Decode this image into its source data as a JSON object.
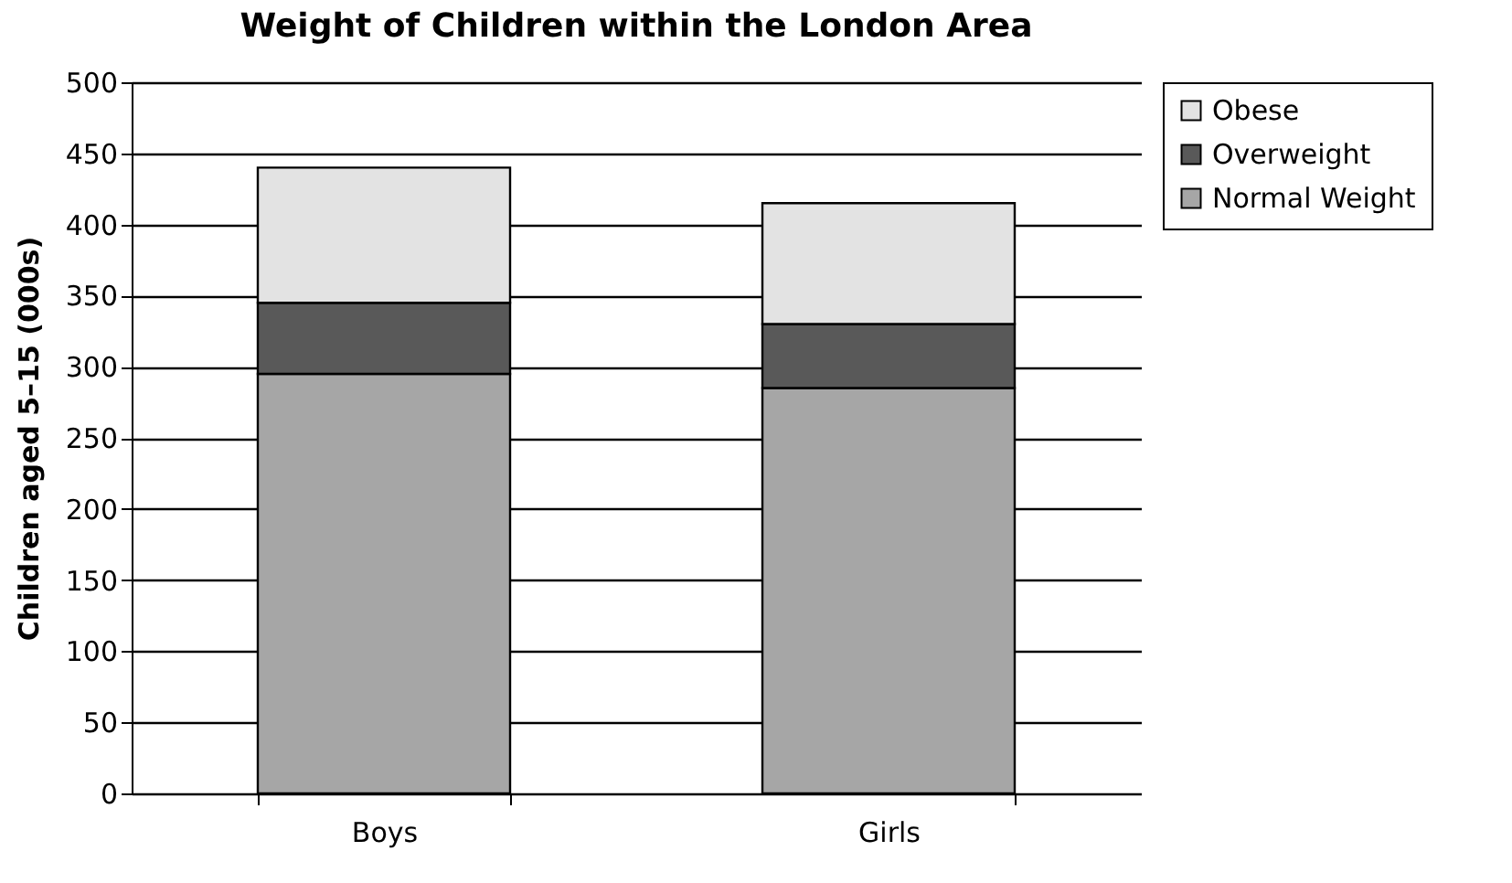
{
  "chart_data": {
    "type": "bar",
    "title": "Weight of Children within the London Area",
    "ylabel": "Children aged 5–15 (000s)",
    "categories": [
      "Boys",
      "Girls"
    ],
    "stacked": true,
    "series": [
      {
        "name": "Normal Weight",
        "color": "#a6a6a6",
        "values": [
          295,
          285
        ]
      },
      {
        "name": "Overweight",
        "color": "#595959",
        "values": [
          50,
          45
        ]
      },
      {
        "name": "Obese",
        "color": "#e3e3e3",
        "values": [
          95,
          85
        ]
      }
    ],
    "ylim": [
      0,
      500
    ],
    "yticks": [
      0,
      50,
      100,
      150,
      200,
      250,
      300,
      350,
      400,
      450,
      500
    ],
    "grid": "y",
    "legend": "right"
  }
}
